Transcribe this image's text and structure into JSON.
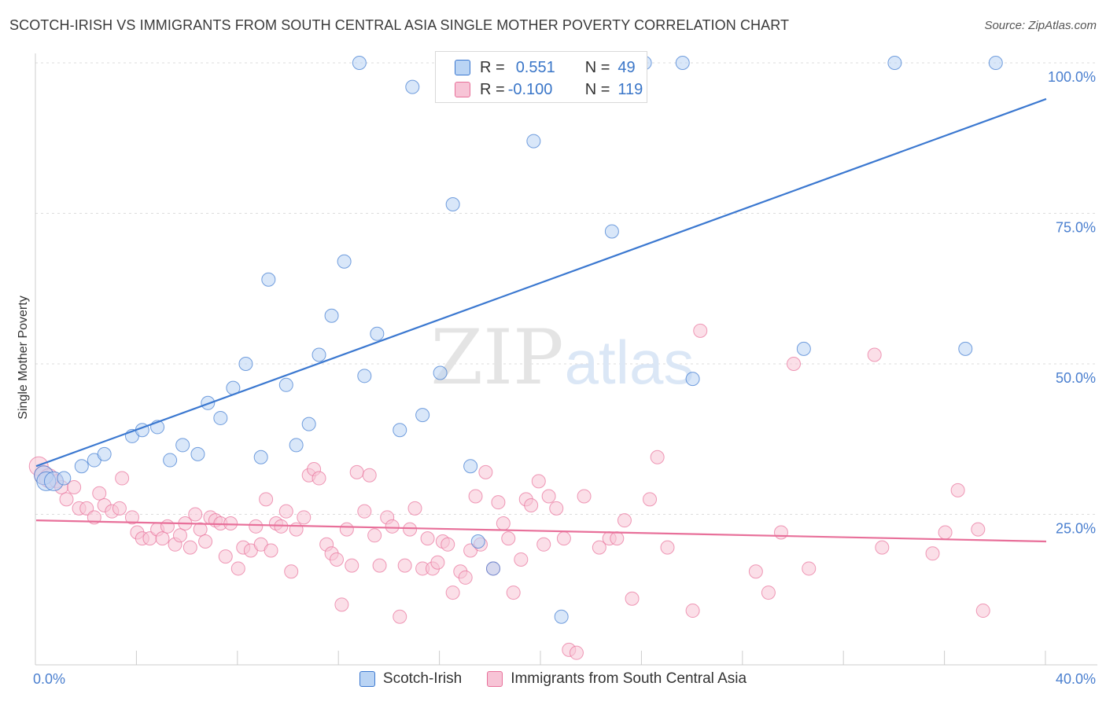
{
  "title": "SCOTCH-IRISH VS IMMIGRANTS FROM SOUTH CENTRAL ASIA SINGLE MOTHER POVERTY CORRELATION CHART",
  "source": "Source: ZipAtlas.com",
  "watermark": {
    "zip": "ZIP",
    "atlas": "atlas"
  },
  "colors": {
    "blue": "#3b78d0",
    "blue_fill": "#bad4f4",
    "pink": "#e8709a",
    "pink_fill": "#f7c4d6",
    "grid": "#dcdcdc",
    "tick_label": "#4a7fcf"
  },
  "legend_top": {
    "rows": [
      {
        "r_label": "R =",
        "r_value": "0.551",
        "n_label": "N =",
        "n_value": "49"
      },
      {
        "r_label": "R =",
        "r_value": "-0.100",
        "n_label": "N =",
        "n_value": "119"
      }
    ]
  },
  "legend_bottom": [
    {
      "label": "Scotch-Irish"
    },
    {
      "label": "Immigrants from South Central Asia"
    }
  ],
  "chart_data": {
    "type": "scatter",
    "title": "SCOTCH-IRISH VS IMMIGRANTS FROM SOUTH CENTRAL ASIA SINGLE MOTHER POVERTY CORRELATION CHART",
    "xlabel": "",
    "ylabel": "Single Mother Poverty",
    "xlim": [
      0,
      40
    ],
    "ylim": [
      0,
      100
    ],
    "x_ticks": [
      0,
      40
    ],
    "x_tick_labels": [
      "0.0%",
      "40.0%"
    ],
    "y_ticks": [
      25,
      50,
      75,
      100
    ],
    "y_tick_labels": [
      "25.0%",
      "50.0%",
      "75.0%",
      "100.0%"
    ],
    "grid": true,
    "legend_position": "top-center",
    "series": [
      {
        "name": "Scotch-Irish",
        "color": "#3b78d0",
        "r": 0.551,
        "n": 49,
        "trend": {
          "x": [
            0,
            40
          ],
          "y": [
            33,
            94
          ]
        },
        "points": [
          [
            0.3,
            31.5
          ],
          [
            0.4,
            30.5
          ],
          [
            0.7,
            30.5
          ],
          [
            1.1,
            31
          ],
          [
            1.8,
            33
          ],
          [
            2.3,
            34
          ],
          [
            2.7,
            35
          ],
          [
            3.8,
            38
          ],
          [
            4.2,
            39
          ],
          [
            4.8,
            39.5
          ],
          [
            5.3,
            34
          ],
          [
            5.8,
            36.5
          ],
          [
            6.4,
            35
          ],
          [
            6.8,
            43.5
          ],
          [
            7.3,
            41
          ],
          [
            7.8,
            46
          ],
          [
            8.3,
            50
          ],
          [
            8.9,
            34.5
          ],
          [
            9.2,
            64
          ],
          [
            9.9,
            46.5
          ],
          [
            10.3,
            36.5
          ],
          [
            10.8,
            40
          ],
          [
            11.2,
            51.5
          ],
          [
            11.7,
            58
          ],
          [
            12.2,
            67
          ],
          [
            12.8,
            100
          ],
          [
            13.0,
            48
          ],
          [
            13.5,
            55
          ],
          [
            14.4,
            39
          ],
          [
            14.9,
            96
          ],
          [
            15.3,
            41.5
          ],
          [
            16.0,
            48.5
          ],
          [
            16.5,
            76.5
          ],
          [
            17.2,
            33
          ],
          [
            17.5,
            20.5
          ],
          [
            18.1,
            16
          ],
          [
            18.3,
            100
          ],
          [
            19.7,
            87
          ],
          [
            20.8,
            8
          ],
          [
            21.6,
            100
          ],
          [
            22.1,
            100
          ],
          [
            22.8,
            72
          ],
          [
            24.1,
            100
          ],
          [
            25.6,
            100
          ],
          [
            26.0,
            47.5
          ],
          [
            30.4,
            52.5
          ],
          [
            34.0,
            100
          ],
          [
            36.8,
            52.5
          ],
          [
            38.0,
            100
          ]
        ]
      },
      {
        "name": "Immigrants from South Central Asia",
        "color": "#e8709a",
        "r": -0.1,
        "n": 119,
        "trend": {
          "x": [
            0,
            40
          ],
          "y": [
            24,
            20.5
          ]
        },
        "points": [
          [
            0.1,
            33
          ],
          [
            0.3,
            31.5
          ],
          [
            0.5,
            31
          ],
          [
            0.8,
            30.5
          ],
          [
            1.0,
            29.5
          ],
          [
            1.2,
            27.5
          ],
          [
            1.5,
            29.5
          ],
          [
            1.7,
            26
          ],
          [
            2.0,
            26
          ],
          [
            2.3,
            24.5
          ],
          [
            2.5,
            28.5
          ],
          [
            2.7,
            26.5
          ],
          [
            3.0,
            25.5
          ],
          [
            3.3,
            26
          ],
          [
            3.4,
            31
          ],
          [
            3.8,
            24.5
          ],
          [
            4.0,
            22
          ],
          [
            4.2,
            21
          ],
          [
            4.5,
            21
          ],
          [
            4.8,
            22.5
          ],
          [
            5.0,
            21
          ],
          [
            5.2,
            23
          ],
          [
            5.5,
            20
          ],
          [
            5.7,
            21.5
          ],
          [
            5.9,
            23.5
          ],
          [
            6.1,
            19.5
          ],
          [
            6.3,
            25
          ],
          [
            6.5,
            22.5
          ],
          [
            6.7,
            20.5
          ],
          [
            6.9,
            24.5
          ],
          [
            7.1,
            24
          ],
          [
            7.3,
            23.5
          ],
          [
            7.5,
            18
          ],
          [
            7.7,
            23.5
          ],
          [
            8.0,
            16
          ],
          [
            8.2,
            19.5
          ],
          [
            8.5,
            19
          ],
          [
            8.7,
            23
          ],
          [
            8.9,
            20
          ],
          [
            9.1,
            27.5
          ],
          [
            9.3,
            19
          ],
          [
            9.5,
            23.5
          ],
          [
            9.7,
            23
          ],
          [
            9.9,
            25.5
          ],
          [
            10.1,
            15.5
          ],
          [
            10.3,
            22.5
          ],
          [
            10.6,
            24.5
          ],
          [
            10.8,
            31.5
          ],
          [
            11.0,
            32.5
          ],
          [
            11.2,
            31
          ],
          [
            11.5,
            20
          ],
          [
            11.7,
            18.5
          ],
          [
            11.9,
            17.5
          ],
          [
            12.1,
            10
          ],
          [
            12.3,
            22.5
          ],
          [
            12.5,
            16.5
          ],
          [
            12.7,
            32
          ],
          [
            13.0,
            25.5
          ],
          [
            13.2,
            31.5
          ],
          [
            13.4,
            21.5
          ],
          [
            13.6,
            16.5
          ],
          [
            13.9,
            24.5
          ],
          [
            14.1,
            23
          ],
          [
            14.4,
            8
          ],
          [
            14.6,
            16.5
          ],
          [
            14.8,
            22.5
          ],
          [
            15.0,
            26
          ],
          [
            15.3,
            16
          ],
          [
            15.5,
            21
          ],
          [
            15.7,
            16
          ],
          [
            15.9,
            17
          ],
          [
            16.1,
            20.5
          ],
          [
            16.3,
            20
          ],
          [
            16.5,
            12
          ],
          [
            16.8,
            15.5
          ],
          [
            17.0,
            14.5
          ],
          [
            17.2,
            19
          ],
          [
            17.4,
            28
          ],
          [
            17.6,
            20
          ],
          [
            17.8,
            32
          ],
          [
            18.1,
            16
          ],
          [
            18.3,
            27
          ],
          [
            18.5,
            23.5
          ],
          [
            18.7,
            21
          ],
          [
            18.9,
            12
          ],
          [
            19.2,
            17.5
          ],
          [
            19.4,
            27.5
          ],
          [
            19.6,
            26.5
          ],
          [
            19.9,
            30.5
          ],
          [
            20.1,
            20
          ],
          [
            20.3,
            28
          ],
          [
            20.6,
            26
          ],
          [
            20.9,
            21
          ],
          [
            21.1,
            2.5
          ],
          [
            21.4,
            2
          ],
          [
            21.7,
            28
          ],
          [
            22.3,
            19.5
          ],
          [
            22.7,
            21
          ],
          [
            23.0,
            21
          ],
          [
            23.3,
            24
          ],
          [
            23.6,
            11
          ],
          [
            24.3,
            27.5
          ],
          [
            24.6,
            34.5
          ],
          [
            25.0,
            19.5
          ],
          [
            26.0,
            9
          ],
          [
            26.3,
            55.5
          ],
          [
            28.5,
            15.5
          ],
          [
            29.0,
            12
          ],
          [
            29.5,
            22
          ],
          [
            30.0,
            50
          ],
          [
            30.6,
            16
          ],
          [
            33.2,
            51.5
          ],
          [
            33.5,
            19.5
          ],
          [
            35.5,
            18.5
          ],
          [
            36.0,
            22
          ],
          [
            36.5,
            29
          ],
          [
            37.3,
            22.5
          ],
          [
            37.5,
            9
          ]
        ]
      }
    ]
  }
}
